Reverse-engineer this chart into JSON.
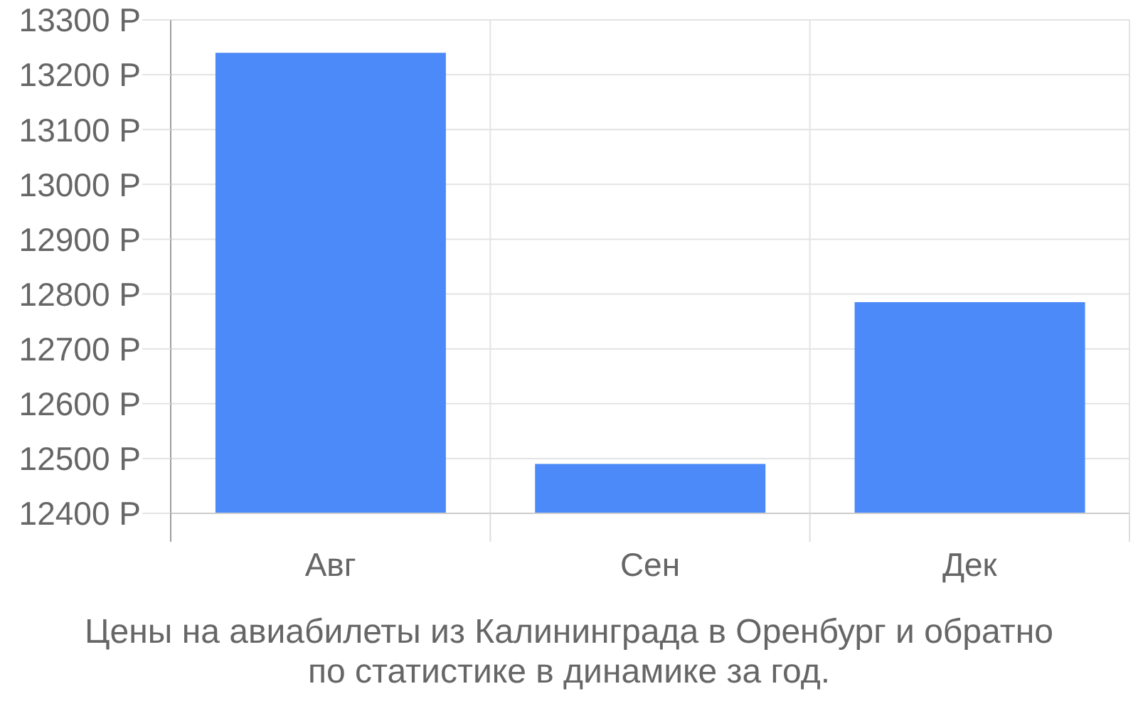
{
  "chart_data": {
    "type": "bar",
    "title": "Цены на авиабилеты из Калининграда в Оренбург и обратно по статистике в динамике за год.",
    "categories": [
      "Авг",
      "Сен",
      "Дек"
    ],
    "values": [
      13240,
      12490,
      12785
    ],
    "color": "#4d8af9",
    "ylim": [
      12400,
      13300
    ],
    "yticks": [
      {
        "value": 12400,
        "label": "12400 Р"
      },
      {
        "value": 12500,
        "label": "12500 Р"
      },
      {
        "value": 12600,
        "label": "12600 Р"
      },
      {
        "value": 12700,
        "label": "12700 Р"
      },
      {
        "value": 12800,
        "label": "12800 Р"
      },
      {
        "value": 12900,
        "label": "12900 Р"
      },
      {
        "value": 13000,
        "label": "13000 Р"
      },
      {
        "value": 13100,
        "label": "13100 Р"
      },
      {
        "value": 13200,
        "label": "13200 Р"
      },
      {
        "value": 13300,
        "label": "13300 Р"
      }
    ],
    "grid": true
  }
}
